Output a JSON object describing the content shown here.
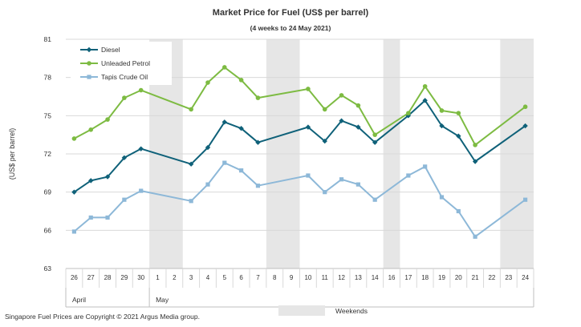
{
  "chart_data": {
    "type": "line",
    "title": "Market Price for Fuel (US$ per barrel)",
    "subtitle": "(4 weeks to 24 May 2021)",
    "ylabel": "(US$ per barrel)",
    "xlabel": "",
    "ylim": [
      63,
      81
    ],
    "yticks": [
      "63",
      "66",
      "69",
      "72",
      "75",
      "78",
      "81"
    ],
    "legend_position": "top-left",
    "categories": [
      "26",
      "27",
      "28",
      "29",
      "30",
      "1",
      "2",
      "3",
      "4",
      "5",
      "6",
      "7",
      "8",
      "9",
      "10",
      "11",
      "12",
      "13",
      "14",
      "16",
      "17",
      "18",
      "19",
      "20",
      "21",
      "22",
      "23",
      "24"
    ],
    "month_labels": [
      {
        "label": "April",
        "start_index": 0,
        "end_index": 4
      },
      {
        "label": "May",
        "start_index": 5,
        "end_index": 27
      }
    ],
    "weekend_bands": [
      {
        "from_index": 5,
        "to_index": 6
      },
      {
        "from_index": 12,
        "to_index": 13
      },
      {
        "from_index": 19,
        "to_index": 19
      },
      {
        "from_index": 26,
        "to_index": 27
      }
    ],
    "weekend_label": "Weekends",
    "weekend_color": "#e6e6e6",
    "series": [
      {
        "name": "Diesel",
        "color": "#0f6179",
        "marker": "diamond",
        "values": [
          69.0,
          69.9,
          70.2,
          71.7,
          72.4,
          null,
          null,
          71.2,
          72.5,
          74.5,
          74.0,
          72.9,
          null,
          null,
          74.1,
          73.0,
          74.6,
          74.1,
          72.9,
          null,
          75.0,
          76.2,
          74.2,
          73.4,
          71.4,
          null,
          null,
          74.2
        ]
      },
      {
        "name": "Unleaded Petrol",
        "color": "#7dbb42",
        "marker": "circle",
        "values": [
          73.2,
          73.9,
          74.7,
          76.4,
          77.0,
          null,
          null,
          75.5,
          77.6,
          78.8,
          77.8,
          76.4,
          null,
          null,
          77.1,
          75.5,
          76.6,
          75.8,
          73.5,
          null,
          75.2,
          77.3,
          75.4,
          75.2,
          72.7,
          null,
          null,
          75.7
        ]
      },
      {
        "name": "Tapis Crude Oil",
        "color": "#8db8d8",
        "marker": "square",
        "values": [
          65.9,
          67.0,
          67.0,
          68.4,
          69.1,
          null,
          null,
          68.3,
          69.6,
          71.3,
          70.7,
          69.5,
          null,
          null,
          70.3,
          69.0,
          70.0,
          69.6,
          68.4,
          null,
          70.3,
          71.0,
          68.6,
          67.5,
          65.5,
          null,
          null,
          68.4
        ]
      }
    ]
  },
  "footer": {
    "copyright": "Singapore  Fuel Prices are Copyright © 2021  Argus Media group."
  }
}
